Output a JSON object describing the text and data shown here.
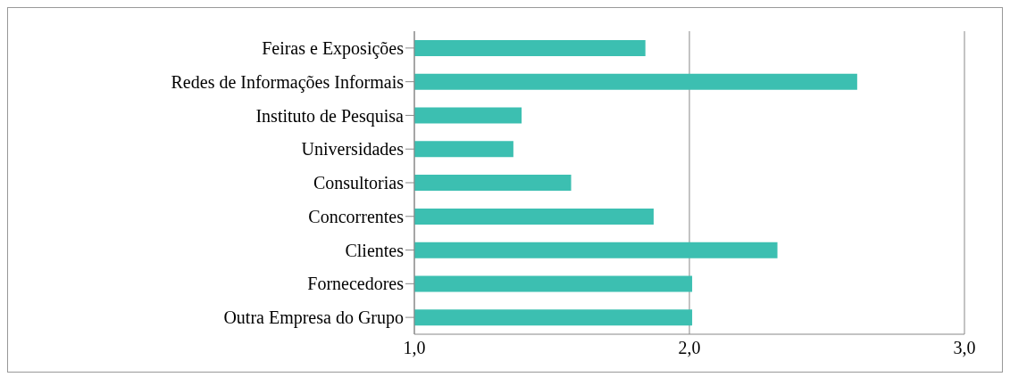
{
  "chart_data": {
    "type": "bar",
    "orientation": "horizontal",
    "categories": [
      "Feiras e Exposições",
      "Redes de Informações Informais",
      "Instituto de Pesquisa",
      "Universidades",
      "Consultorias",
      "Concorrentes",
      "Clientes",
      "Fornecedores",
      "Outra Empresa do Grupo"
    ],
    "values": [
      1.84,
      2.61,
      1.39,
      1.36,
      1.57,
      1.87,
      2.32,
      2.01,
      2.01
    ],
    "color": "#3cbfb1",
    "xlim": [
      1,
      3
    ],
    "xticks": [
      {
        "value": 1,
        "label": "1,0"
      },
      {
        "value": 2,
        "label": "2,0"
      },
      {
        "value": 3,
        "label": "3,0"
      }
    ],
    "grid": "x"
  }
}
